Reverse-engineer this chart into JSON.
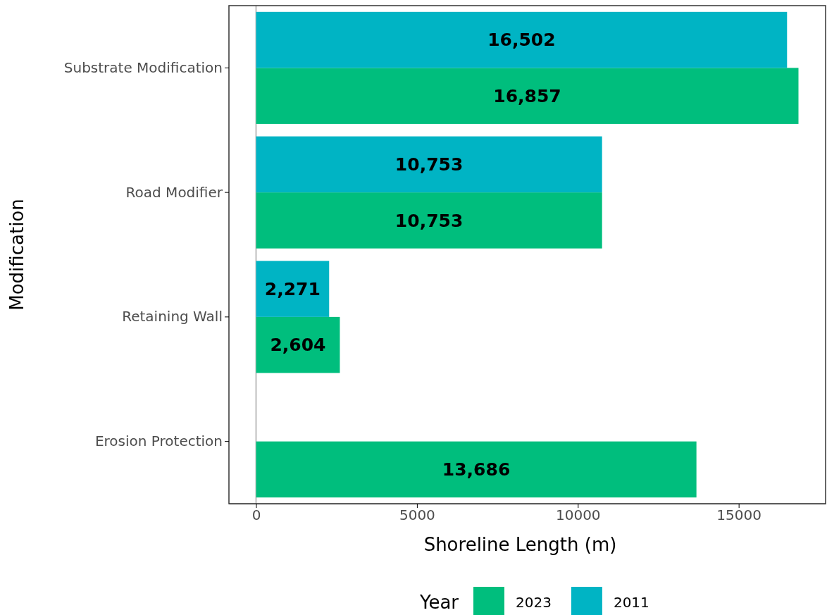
{
  "chart_data": {
    "type": "bar",
    "orientation": "horizontal",
    "xlabel": "Shoreline Length (m)",
    "ylabel": "Modification",
    "legend_title": "Year",
    "categories": [
      "Substrate Modification",
      "Road Modifier",
      "Retaining Wall",
      "Erosion Protection"
    ],
    "series": [
      {
        "name": "2023",
        "color": "#00be7d",
        "values": [
          16857,
          10753,
          2604,
          13686
        ],
        "value_labels": [
          "16,857",
          "10,753",
          "2,604",
          "13,686"
        ]
      },
      {
        "name": "2011",
        "color": "#00b4c4",
        "values": [
          16502,
          10753,
          2271,
          null
        ],
        "value_labels": [
          "16,502",
          "10,753",
          "2,271",
          null
        ]
      }
    ],
    "xlim": [
      -843,
      17700
    ],
    "xticks": [
      0,
      5000,
      10000,
      15000
    ],
    "ref_lines": [
      {
        "axis": "x",
        "value": 0,
        "color": "#bebebe"
      }
    ],
    "grid": false,
    "legend": "bottom"
  }
}
